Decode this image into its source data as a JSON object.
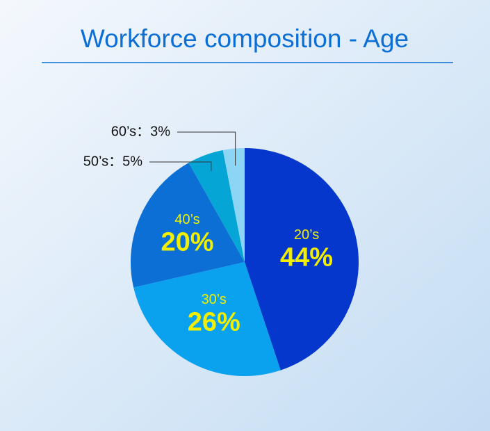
{
  "chart_data": {
    "type": "pie",
    "title": "Workforce composition - Age",
    "categories": [
      "20’s",
      "30’s",
      "40’s",
      "50’s",
      "60’s"
    ],
    "values": [
      44,
      26,
      20,
      5,
      3
    ],
    "value_labels": [
      "44%",
      "26%",
      "20%",
      "：5%",
      "：3%"
    ],
    "colors": [
      "#0537cc",
      "#0aa2ee",
      "#0c6fd6",
      "#05a6d6",
      "#8dd5f4"
    ]
  }
}
